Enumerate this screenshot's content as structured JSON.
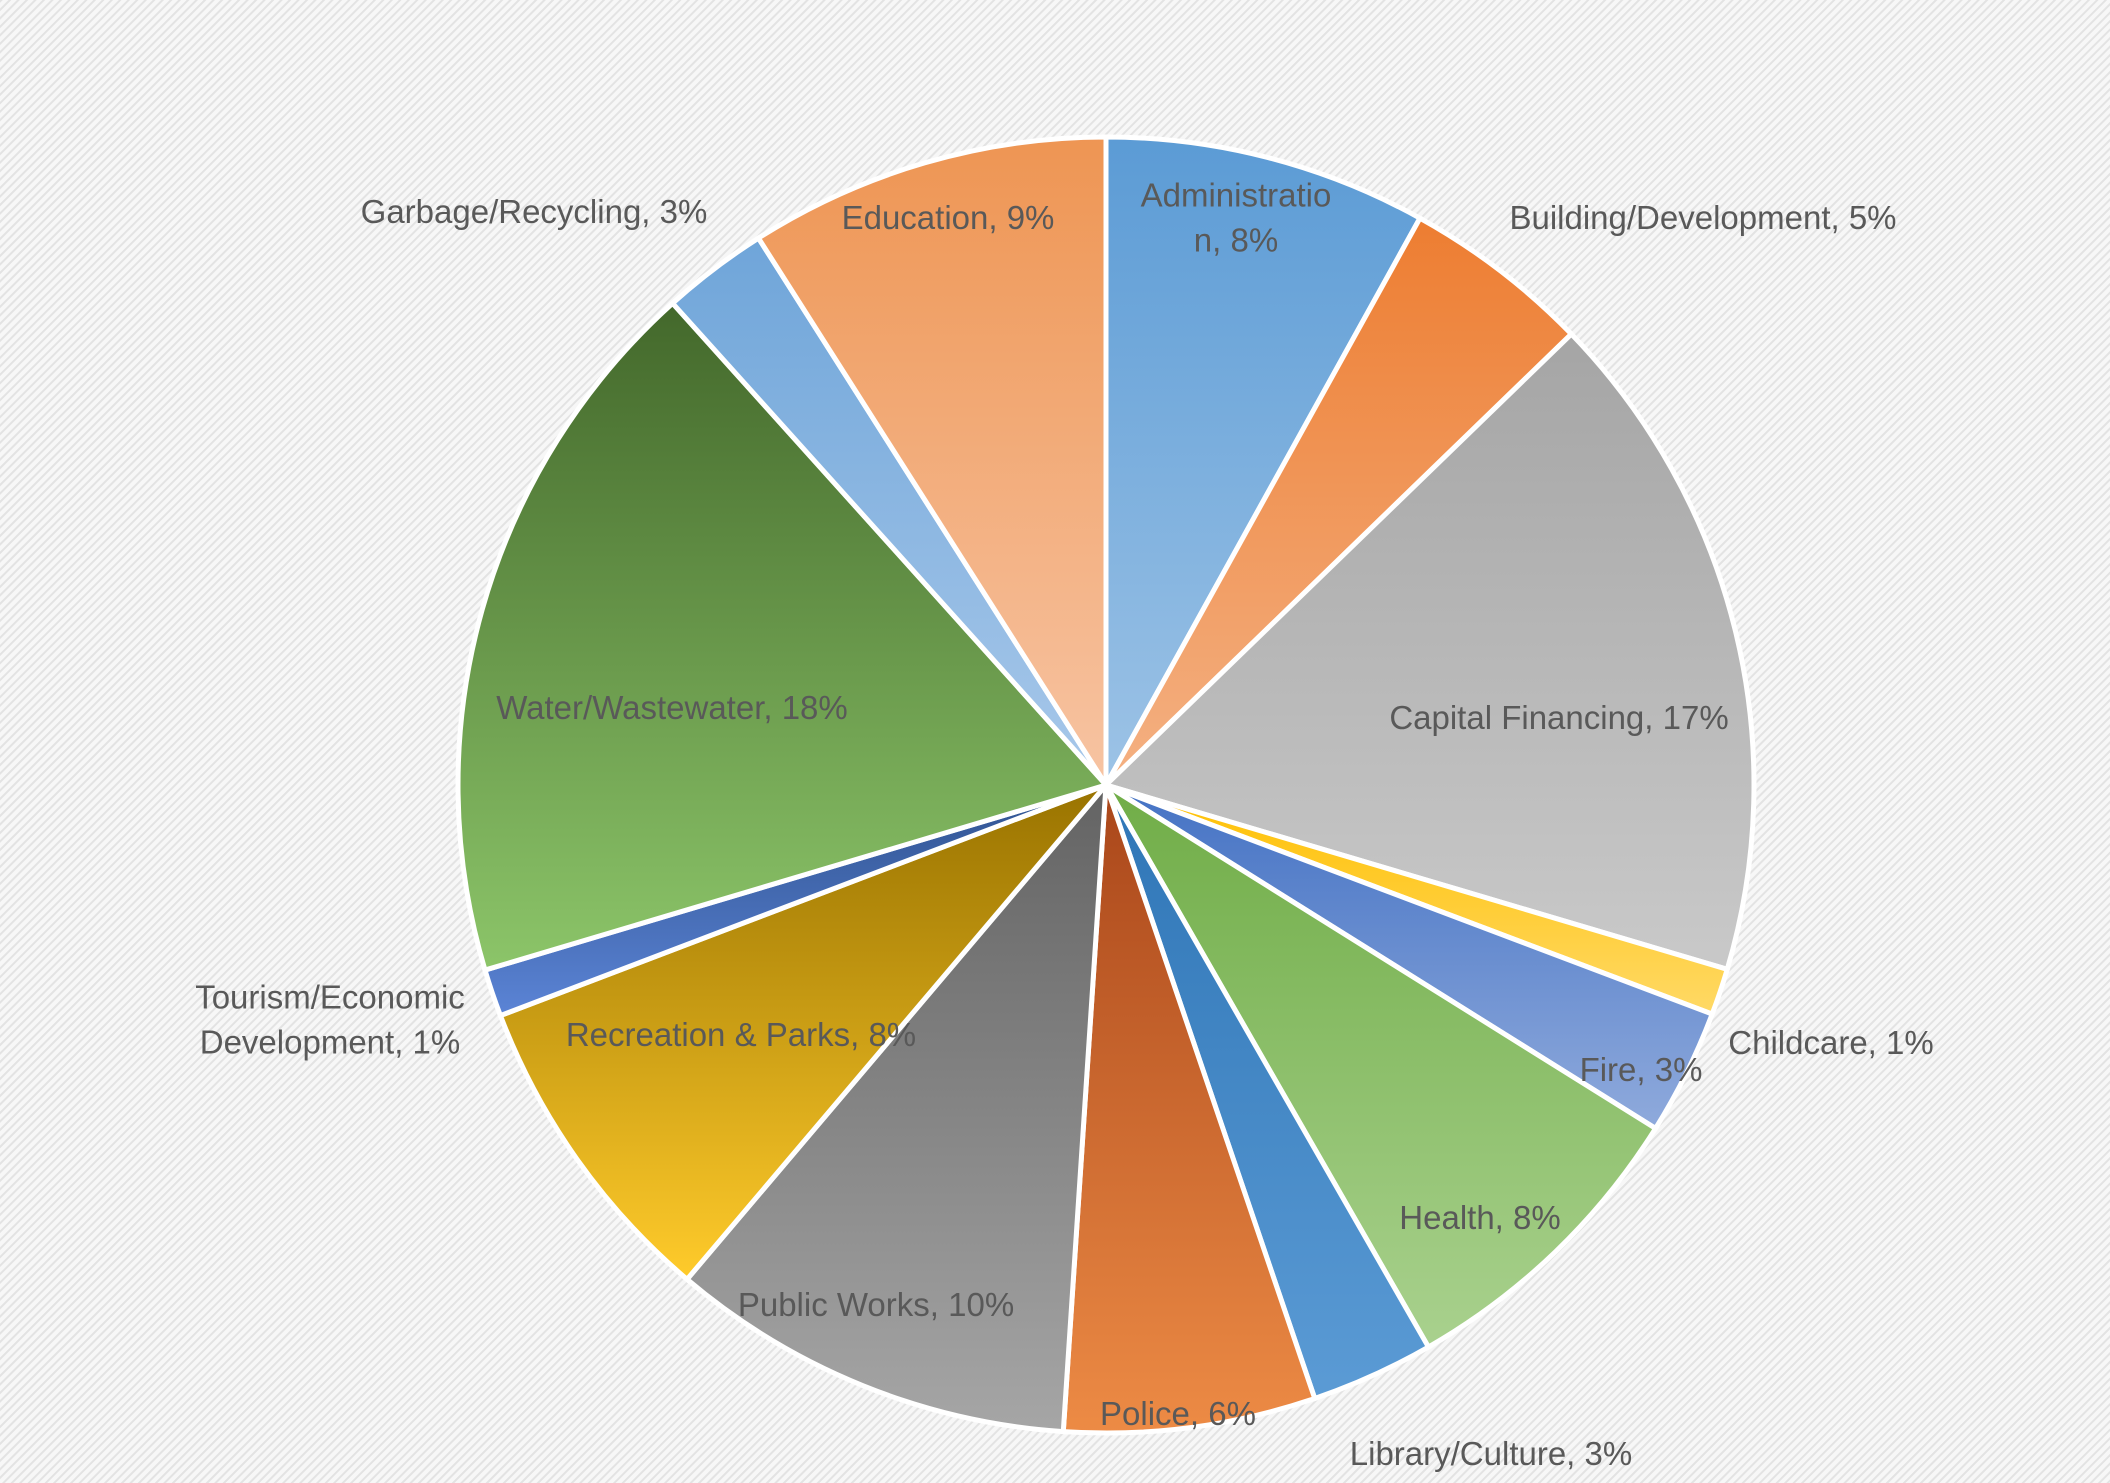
{
  "chart_data": {
    "type": "pie",
    "title": "",
    "slices": [
      {
        "lines": [
          "Administratio",
          "n, 8%"
        ],
        "name": "Administration",
        "value": 8,
        "pct": 8.05,
        "colors": [
          "#5b9bd5",
          "#9dc3e6"
        ]
      },
      {
        "lines": [
          "Building/Development, 5%"
        ],
        "name": "Building/Development",
        "value": 5,
        "pct": 4.7,
        "colors": [
          "#ed7d31",
          "#f4b183"
        ]
      },
      {
        "lines": [
          "Capital Financing, 17%"
        ],
        "name": "Capital Financing",
        "value": 17,
        "pct": 16.84,
        "colors": [
          "#a5a5a5",
          "#c9c9c9"
        ]
      },
      {
        "lines": [
          "Childcare, 1%"
        ],
        "name": "Childcare",
        "value": 1,
        "pct": 1.16,
        "colors": [
          "#ffc000",
          "#ffd966"
        ]
      },
      {
        "lines": [
          "Fire, 3%"
        ],
        "name": "Fire",
        "value": 3,
        "pct": 3.14,
        "colors": [
          "#4472c4",
          "#8faadc"
        ]
      },
      {
        "lines": [
          "Health, 8%"
        ],
        "name": "Health",
        "value": 8,
        "pct": 7.82,
        "colors": [
          "#70ad47",
          "#a9d18e"
        ]
      },
      {
        "lines": [
          "Library/Culture, 3%"
        ],
        "name": "Library/Culture",
        "value": 3,
        "pct": 3.07,
        "colors": [
          "#2e75b6",
          "#5b9bd5"
        ]
      },
      {
        "lines": [
          "Police, 6%"
        ],
        "name": "Police",
        "value": 6,
        "pct": 6.27,
        "colors": [
          "#a9461a",
          "#ed8b45"
        ]
      },
      {
        "lines": [
          "Public Works, 10%"
        ],
        "name": "Public Works",
        "value": 10,
        "pct": 10.14,
        "colors": [
          "#636363",
          "#a6a6a6"
        ]
      },
      {
        "lines": [
          "Recreation & Parks, 8%"
        ],
        "name": "Recreation & Parks",
        "value": 8,
        "pct": 8.02,
        "colors": [
          "#997300",
          "#ffcb2b"
        ]
      },
      {
        "lines": [
          "Tourism/Economic",
          "Development, 1%"
        ],
        "name": "Tourism/Economic Development",
        "value": 1,
        "pct": 1.18,
        "colors": [
          "#2f528f",
          "#5b84d6"
        ]
      },
      {
        "lines": [
          "Water/Wastewater, 18%"
        ],
        "name": "Water/Wastewater",
        "value": 18,
        "pct": 17.95,
        "colors": [
          "#43682b",
          "#8cc569"
        ]
      },
      {
        "lines": [
          "Garbage/Recycling, 3%"
        ],
        "name": "Garbage/Recycling",
        "value": 3,
        "pct": 2.65,
        "colors": [
          "#6fa5d9",
          "#a8c8ea"
        ]
      },
      {
        "lines": [
          "Education, 9%"
        ],
        "name": "Education",
        "value": 9,
        "pct": 9.01,
        "colors": [
          "#ee9553",
          "#f7c4a3"
        ]
      }
    ],
    "start_angle": "12 o'clock",
    "direction": "clockwise",
    "legend": "none",
    "data_labels": "category name and percentage",
    "background": {
      "base": "#f7f7f7",
      "hatch": "#e3e3e3",
      "pattern": "diagonal lines"
    }
  }
}
